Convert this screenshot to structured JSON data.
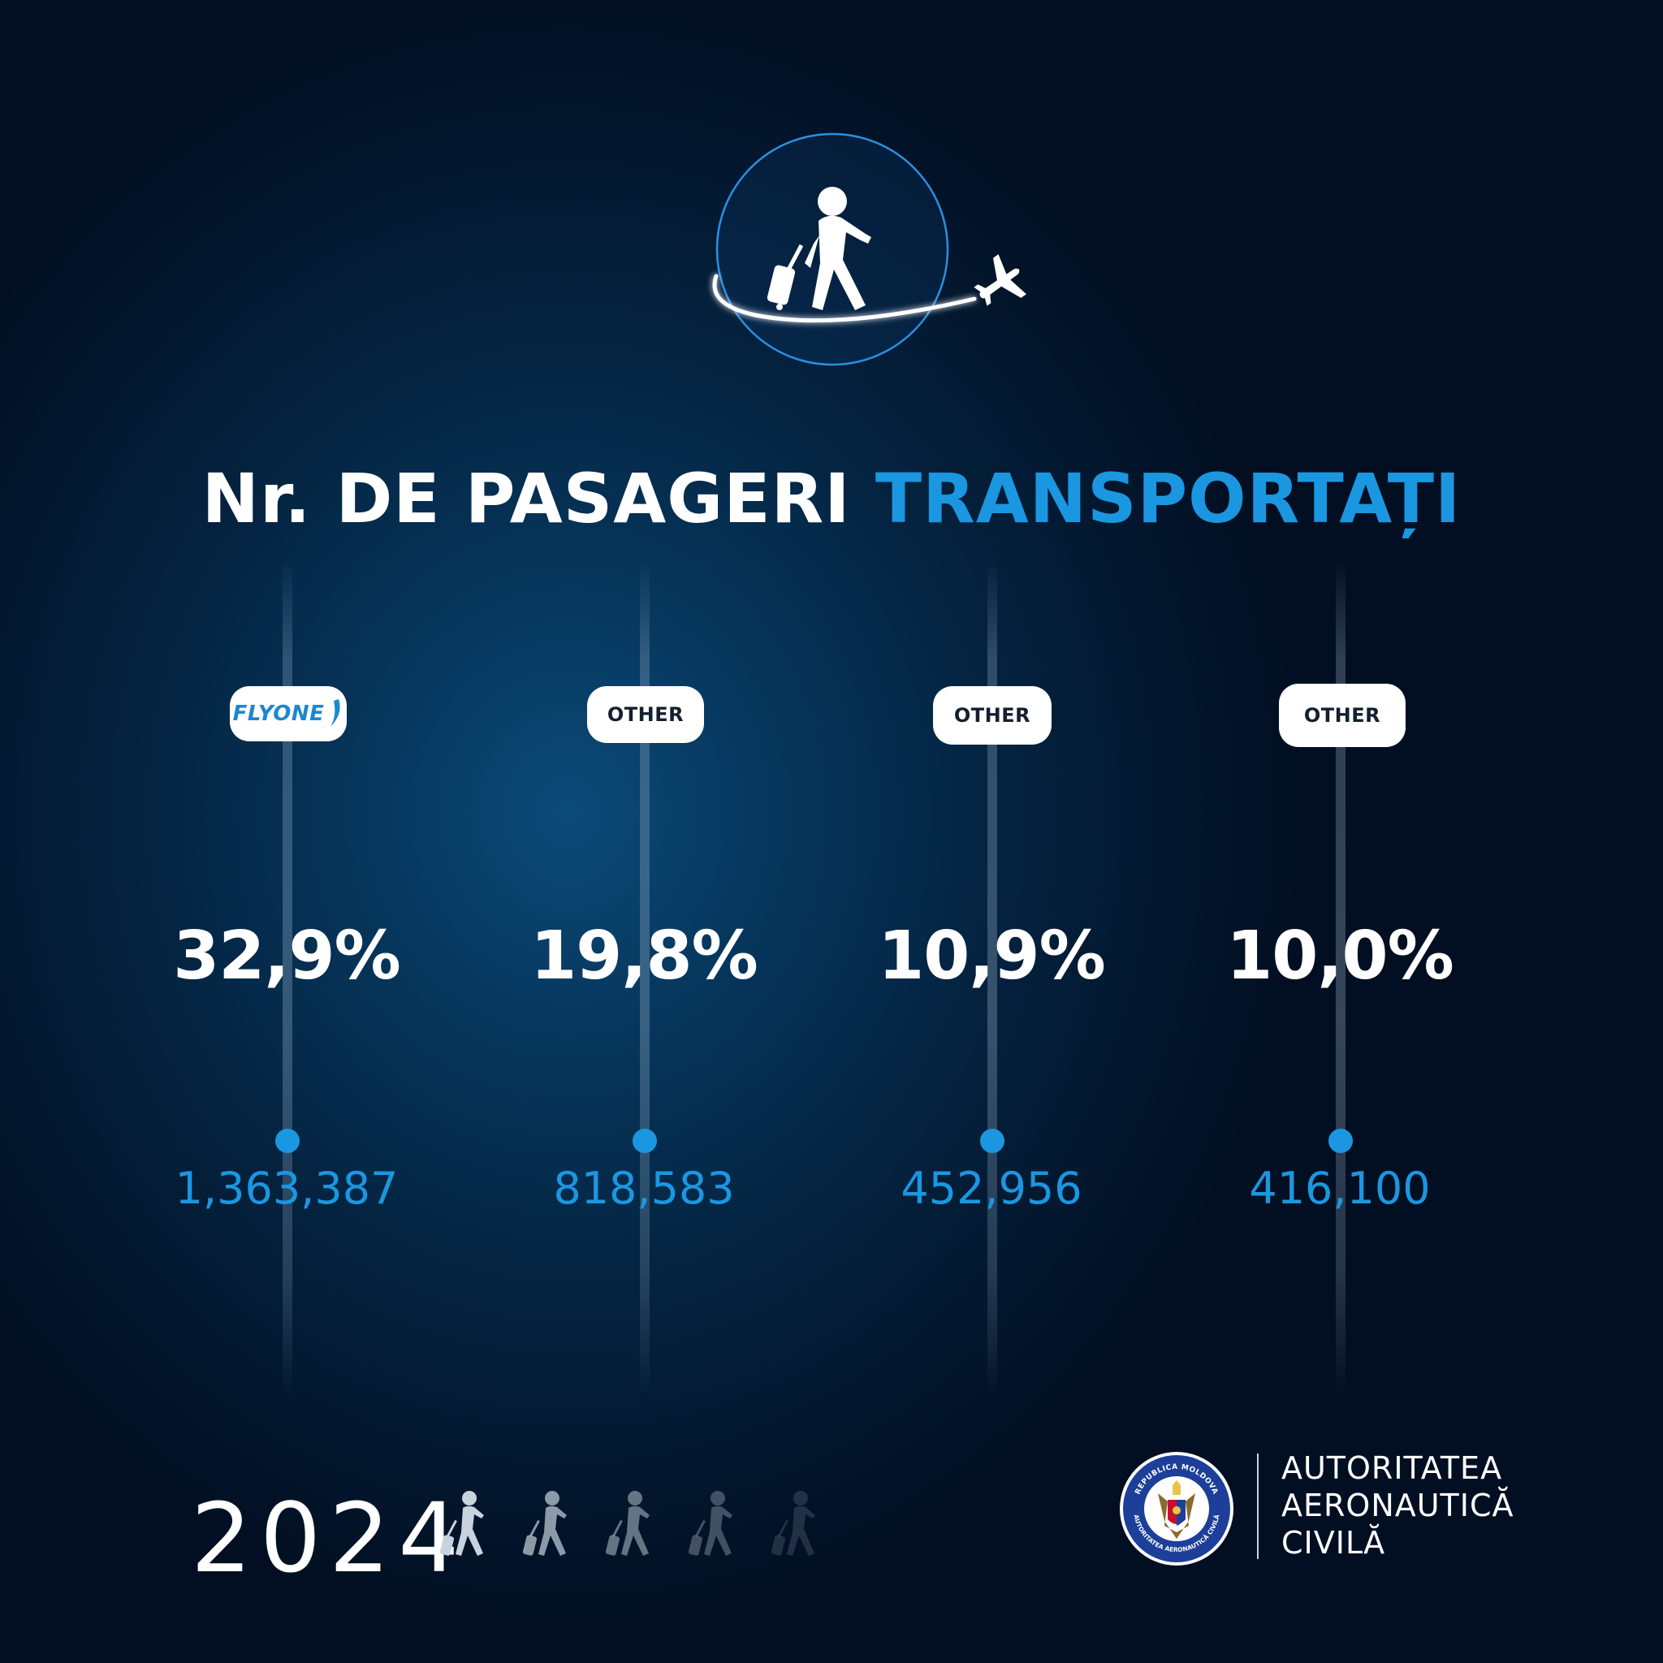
{
  "headline": {
    "part1": "Nr. DE PASAGERI",
    "part2": "TRANSPORTAȚI"
  },
  "colors": {
    "accent": "#1a97e0",
    "background": "#04223f",
    "pill": "#ffffff"
  },
  "chart_data": {
    "type": "table",
    "columns": [
      {
        "label": "FLYONE",
        "percent": "32,9%",
        "passengers": "1,363,387"
      },
      {
        "label": "OTHER",
        "percent": "19,8%",
        "passengers": "818,583"
      },
      {
        "label": "OTHER",
        "percent": "10,9%",
        "passengers": "452,956"
      },
      {
        "label": "OTHER",
        "percent": "10,0%",
        "passengers": "416,100"
      }
    ]
  },
  "footer": {
    "year": "2024",
    "org_line1": "AUTORITATEA",
    "org_line2": "AERONAUTICĂ",
    "org_line3": "CIVILĂ",
    "seal_text_top": "REPUBLICA MOLDOVA",
    "seal_text_bottom": "AUTORITATEA AERONAUTICĂ CIVILĂ"
  },
  "icons": [
    "traveler-icon",
    "airplane-icon",
    "walker-icon",
    "state-seal"
  ]
}
